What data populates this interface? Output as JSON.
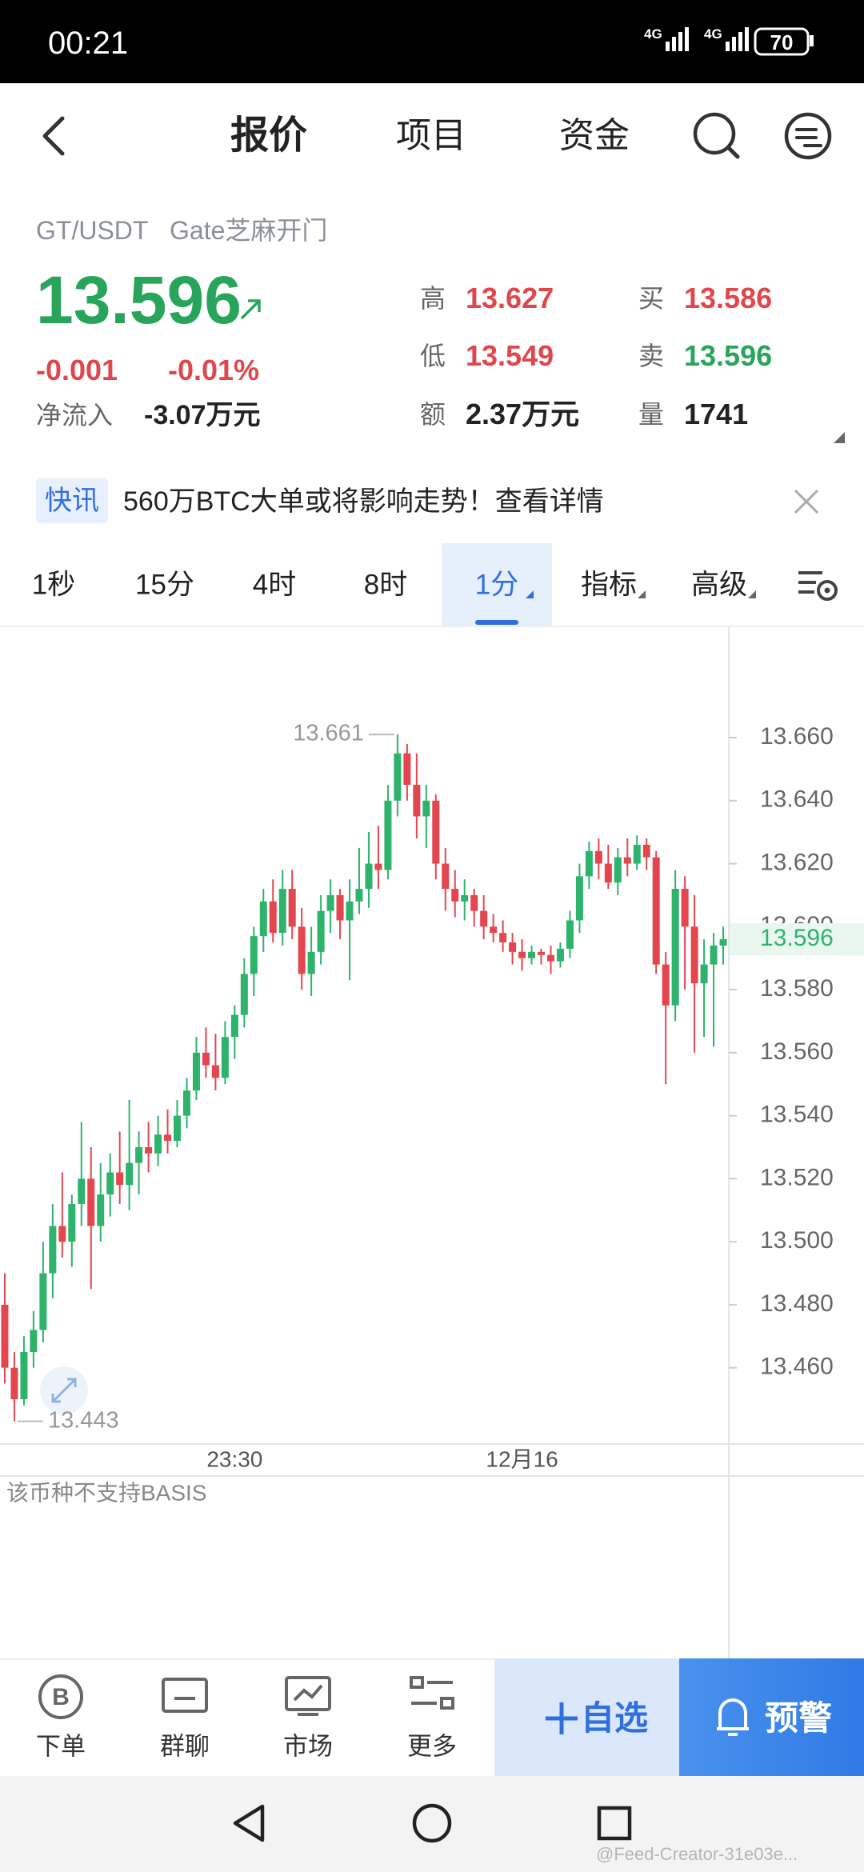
{
  "status_bar": {
    "time": "00:21",
    "network_1": "4G",
    "network_2": "4G",
    "battery": "70"
  },
  "nav": {
    "tabs": [
      "报价",
      "项目",
      "资金"
    ]
  },
  "ticker": {
    "pair": "GT/USDT",
    "exchange": "Gate芝麻开门",
    "price": "13.596",
    "change": "-0.001",
    "change_pct": "-0.01%",
    "net_inflow_label": "净流入",
    "net_inflow": "-3.07万元",
    "stats": [
      {
        "label": "高",
        "value": "13.627",
        "color": "#e0474c"
      },
      {
        "label": "买",
        "value": "13.586",
        "color": "#e0474c"
      },
      {
        "label": "低",
        "value": "13.549",
        "color": "#e0474c"
      },
      {
        "label": "卖",
        "value": "13.596",
        "color": "#28a55b"
      },
      {
        "label": "额",
        "value": "2.37万元",
        "color": "#222222"
      },
      {
        "label": "量",
        "value": "1741",
        "color": "#222222"
      }
    ]
  },
  "news": {
    "tag": "快讯",
    "text": "560万BTC大单或将影响走势！查看详情"
  },
  "intervals": {
    "items": [
      "1秒",
      "15分",
      "4时",
      "8时",
      "1分",
      "指标",
      "高级"
    ],
    "selected": 4
  },
  "chart_data": {
    "type": "candlestick",
    "up_color": "#2db36c",
    "down_color": "#e4464f",
    "ylim": [
      13.4358,
      13.6953
    ],
    "yticks": [
      {
        "value": 13.46,
        "label": "13.460"
      },
      {
        "value": 13.48,
        "label": "13.480"
      },
      {
        "value": 13.5,
        "label": "13.500"
      },
      {
        "value": 13.52,
        "label": "13.520"
      },
      {
        "value": 13.54,
        "label": "13.540"
      },
      {
        "value": 13.56,
        "label": "13.560"
      },
      {
        "value": 13.58,
        "label": "13.580"
      },
      {
        "value": 13.6,
        "label": "13.600"
      },
      {
        "value": 13.62,
        "label": "13.620"
      },
      {
        "value": 13.64,
        "label": "13.640"
      },
      {
        "value": 13.66,
        "label": "13.660"
      }
    ],
    "grid": false,
    "categories": [
      null,
      null,
      null,
      null,
      null,
      null,
      null,
      null,
      null,
      null,
      null,
      null,
      null,
      null,
      null,
      null,
      null,
      null,
      null,
      null,
      null,
      null,
      null,
      null,
      "23:30",
      null,
      null,
      null,
      null,
      null,
      null,
      null,
      null,
      null,
      null,
      null,
      null,
      null,
      null,
      null,
      null,
      null,
      null,
      null,
      null,
      null,
      null,
      null,
      null,
      null,
      null,
      null,
      null,
      null,
      "12月16",
      null,
      null,
      null,
      null,
      null,
      null,
      null,
      null,
      null,
      null,
      null,
      null,
      null,
      null,
      null,
      null,
      null,
      null,
      null,
      null,
      null
    ],
    "candles": [
      [
        13.48,
        13.49,
        13.455,
        13.46
      ],
      [
        13.46,
        13.465,
        13.443,
        13.45
      ],
      [
        13.45,
        13.47,
        13.448,
        13.465
      ],
      [
        13.465,
        13.478,
        13.46,
        13.472
      ],
      [
        13.472,
        13.5,
        13.468,
        13.49
      ],
      [
        13.49,
        13.512,
        13.482,
        13.505
      ],
      [
        13.505,
        13.522,
        13.495,
        13.5
      ],
      [
        13.5,
        13.515,
        13.492,
        13.512
      ],
      [
        13.512,
        13.538,
        13.505,
        13.52
      ],
      [
        13.52,
        13.53,
        13.485,
        13.505
      ],
      [
        13.505,
        13.525,
        13.5,
        13.515
      ],
      [
        13.515,
        13.528,
        13.508,
        13.522
      ],
      [
        13.522,
        13.535,
        13.512,
        13.518
      ],
      [
        13.518,
        13.545,
        13.51,
        13.525
      ],
      [
        13.525,
        13.535,
        13.515,
        13.53
      ],
      [
        13.53,
        13.538,
        13.522,
        13.528
      ],
      [
        13.528,
        13.54,
        13.524,
        13.534
      ],
      [
        13.534,
        13.542,
        13.528,
        13.532
      ],
      [
        13.532,
        13.545,
        13.53,
        13.54
      ],
      [
        13.54,
        13.552,
        13.536,
        13.548
      ],
      [
        13.548,
        13.565,
        13.545,
        13.56
      ],
      [
        13.56,
        13.568,
        13.552,
        13.556
      ],
      [
        13.556,
        13.566,
        13.548,
        13.552
      ],
      [
        13.552,
        13.57,
        13.55,
        13.565
      ],
      [
        13.565,
        13.575,
        13.558,
        13.572
      ],
      [
        13.572,
        13.59,
        13.568,
        13.585
      ],
      [
        13.585,
        13.6,
        13.578,
        13.597
      ],
      [
        13.597,
        13.612,
        13.592,
        13.608
      ],
      [
        13.608,
        13.615,
        13.595,
        13.598
      ],
      [
        13.598,
        13.618,
        13.594,
        13.612
      ],
      [
        13.612,
        13.618,
        13.596,
        13.6
      ],
      [
        13.6,
        13.606,
        13.58,
        13.585
      ],
      [
        13.585,
        13.6,
        13.578,
        13.592
      ],
      [
        13.592,
        13.61,
        13.588,
        13.605
      ],
      [
        13.605,
        13.615,
        13.598,
        13.61
      ],
      [
        13.61,
        13.612,
        13.596,
        13.602
      ],
      [
        13.602,
        13.615,
        13.583,
        13.608
      ],
      [
        13.608,
        13.625,
        13.604,
        13.612
      ],
      [
        13.612,
        13.63,
        13.606,
        13.62
      ],
      [
        13.62,
        13.632,
        13.612,
        13.618
      ],
      [
        13.618,
        13.645,
        13.615,
        13.64
      ],
      [
        13.64,
        13.661,
        13.635,
        13.655
      ],
      [
        13.655,
        13.658,
        13.64,
        13.645
      ],
      [
        13.645,
        13.655,
        13.628,
        13.635
      ],
      [
        13.635,
        13.645,
        13.625,
        13.64
      ],
      [
        13.64,
        13.642,
        13.615,
        13.62
      ],
      [
        13.62,
        13.625,
        13.605,
        13.612
      ],
      [
        13.612,
        13.618,
        13.603,
        13.608
      ],
      [
        13.608,
        13.615,
        13.602,
        13.61
      ],
      [
        13.61,
        13.612,
        13.6,
        13.605
      ],
      [
        13.605,
        13.61,
        13.596,
        13.6
      ],
      [
        13.6,
        13.604,
        13.595,
        13.598
      ],
      [
        13.598,
        13.602,
        13.592,
        13.595
      ],
      [
        13.595,
        13.598,
        13.588,
        13.592
      ],
      [
        13.592,
        13.596,
        13.586,
        13.59
      ],
      [
        13.59,
        13.594,
        13.588,
        13.592
      ],
      [
        13.592,
        13.593,
        13.588,
        13.591
      ],
      [
        13.591,
        13.594,
        13.585,
        13.589
      ],
      [
        13.589,
        13.595,
        13.587,
        13.593
      ],
      [
        13.593,
        13.605,
        13.59,
        13.602
      ],
      [
        13.602,
        13.62,
        13.598,
        13.616
      ],
      [
        13.616,
        13.627,
        13.612,
        13.624
      ],
      [
        13.624,
        13.628,
        13.615,
        13.62
      ],
      [
        13.62,
        13.626,
        13.612,
        13.614
      ],
      [
        13.614,
        13.625,
        13.61,
        13.622
      ],
      [
        13.622,
        13.628,
        13.616,
        13.62
      ],
      [
        13.62,
        13.629,
        13.618,
        13.626
      ],
      [
        13.626,
        13.628,
        13.618,
        13.622
      ],
      [
        13.622,
        13.624,
        13.585,
        13.588
      ],
      [
        13.588,
        13.592,
        13.55,
        13.575
      ],
      [
        13.575,
        13.618,
        13.57,
        13.612
      ],
      [
        13.612,
        13.616,
        13.58,
        13.6
      ],
      [
        13.6,
        13.61,
        13.56,
        13.582
      ],
      [
        13.582,
        13.596,
        13.565,
        13.588
      ],
      [
        13.588,
        13.598,
        13.562,
        13.594
      ],
      [
        13.594,
        13.6,
        13.588,
        13.596
      ]
    ]
  },
  "basis_note": "该币种不支持BASIS",
  "toolbar": {
    "order_icon": "B",
    "items": [
      "下单",
      "群聊",
      "市场",
      "更多"
    ],
    "watchlist": "自选",
    "alert": "预警"
  },
  "watermark": "@Feed-Creator-31e03e..."
}
